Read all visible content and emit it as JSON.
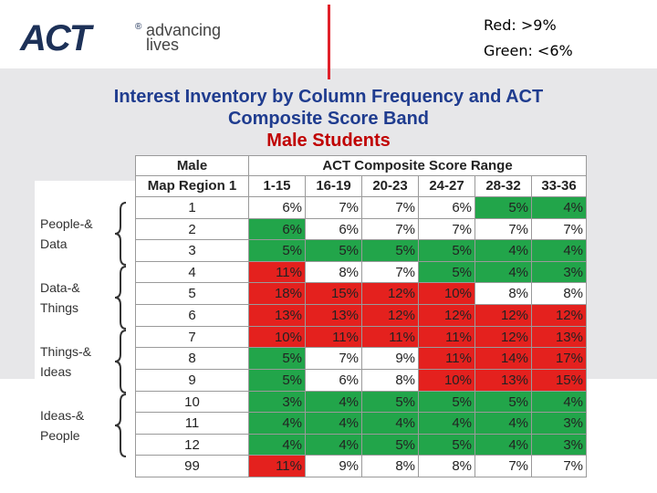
{
  "header": {
    "logo": "ACT",
    "registered": "®",
    "tagline": [
      "advancing",
      "lives"
    ],
    "legend": [
      "Red: >9%",
      "Green: <6%"
    ]
  },
  "title": {
    "lines": [
      "Interest Inventory by Column Frequency and ACT",
      "Composite Score Band"
    ],
    "subtitle": "Male Students"
  },
  "side_labels": [
    [
      "People-&",
      "Data"
    ],
    [
      "Data-&",
      "Things"
    ],
    [
      "Things-&",
      "Ideas"
    ],
    [
      "Ideas-&",
      "People"
    ]
  ],
  "palette": {
    "r": "#e4211e",
    "g": "#22a54a",
    "w": "#ffffff"
  },
  "table": {
    "group_header": [
      "Male",
      "ACT Composite Score Range"
    ],
    "columns": [
      "Map Region 1",
      "1-15",
      "16-19",
      "20-23",
      "24-27",
      "28-32",
      "33-36"
    ],
    "rows": [
      [
        "1",
        "6%",
        "7%",
        "7%",
        "6%",
        "5%",
        "4%"
      ],
      [
        "2",
        "6%",
        "6%",
        "7%",
        "7%",
        "7%",
        "7%"
      ],
      [
        "3",
        "5%",
        "5%",
        "5%",
        "5%",
        "4%",
        "4%"
      ],
      [
        "4",
        "11%",
        "8%",
        "7%",
        "5%",
        "4%",
        "3%"
      ],
      [
        "5",
        "18%",
        "15%",
        "12%",
        "10%",
        "8%",
        "8%"
      ],
      [
        "6",
        "13%",
        "13%",
        "12%",
        "12%",
        "12%",
        "12%"
      ],
      [
        "7",
        "10%",
        "11%",
        "11%",
        "11%",
        "12%",
        "13%"
      ],
      [
        "8",
        "5%",
        "7%",
        "9%",
        "11%",
        "14%",
        "17%"
      ],
      [
        "9",
        "5%",
        "6%",
        "8%",
        "10%",
        "13%",
        "15%"
      ],
      [
        "10",
        "3%",
        "4%",
        "5%",
        "5%",
        "5%",
        "4%"
      ],
      [
        "11",
        "4%",
        "4%",
        "4%",
        "4%",
        "4%",
        "3%"
      ],
      [
        "12",
        "4%",
        "4%",
        "5%",
        "5%",
        "4%",
        "3%"
      ],
      [
        "99",
        "11%",
        "9%",
        "8%",
        "8%",
        "7%",
        "7%"
      ]
    ],
    "fills": [
      [
        "w",
        "w",
        "w",
        "w",
        "g",
        "g"
      ],
      [
        "g",
        "w",
        "w",
        "w",
        "w",
        "w"
      ],
      [
        "g",
        "g",
        "g",
        "g",
        "g",
        "g"
      ],
      [
        "r",
        "w",
        "w",
        "g",
        "g",
        "g"
      ],
      [
        "r",
        "r",
        "r",
        "r",
        "w",
        "w"
      ],
      [
        "r",
        "r",
        "r",
        "r",
        "r",
        "r"
      ],
      [
        "r",
        "r",
        "r",
        "r",
        "r",
        "r"
      ],
      [
        "g",
        "w",
        "w",
        "r",
        "r",
        "r"
      ],
      [
        "g",
        "w",
        "w",
        "r",
        "r",
        "r"
      ],
      [
        "g",
        "g",
        "g",
        "g",
        "g",
        "g"
      ],
      [
        "g",
        "g",
        "g",
        "g",
        "g",
        "g"
      ],
      [
        "g",
        "g",
        "g",
        "g",
        "g",
        "g"
      ],
      [
        "r",
        "w",
        "w",
        "w",
        "w",
        "w"
      ]
    ]
  }
}
